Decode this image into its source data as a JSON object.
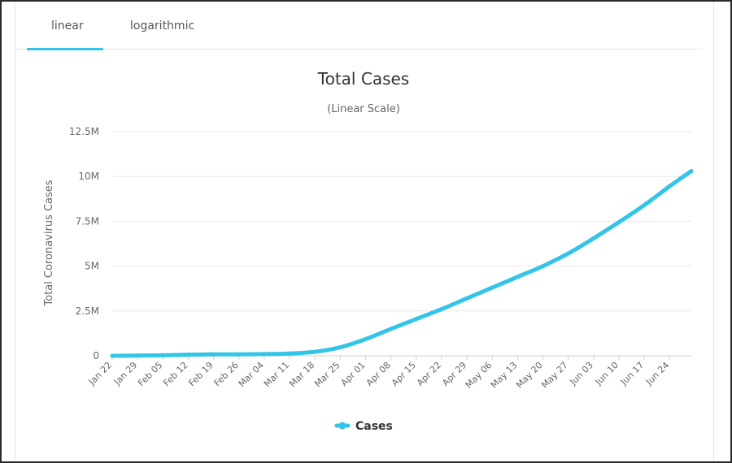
{
  "tabs": [
    {
      "label": "linear",
      "active": true
    },
    {
      "label": "logarithmic",
      "active": false
    }
  ],
  "chart_data": {
    "type": "line",
    "title": "Total Cases",
    "subtitle": "(Linear Scale)",
    "xlabel": "",
    "ylabel": "Total Coronavirus Cases",
    "x_tick_labels": [
      "Jan 22",
      "Jan 29",
      "Feb 05",
      "Feb 12",
      "Feb 19",
      "Feb 26",
      "Mar 04",
      "Mar 11",
      "Mar 18",
      "Mar 25",
      "Apr 01",
      "Apr 08",
      "Apr 15",
      "Apr 22",
      "Apr 29",
      "May 06",
      "May 13",
      "May 20",
      "May 27",
      "Jun 03",
      "Jun 10",
      "Jun 17",
      "Jun 24"
    ],
    "y_tick_labels": [
      "0",
      "2.5M",
      "5M",
      "7.5M",
      "10M",
      "12.5M"
    ],
    "ylim": [
      0,
      12500000
    ],
    "xlim": [
      "Jan 22",
      "Jun 30"
    ],
    "grid": true,
    "legend_position": "bottom-center",
    "series": [
      {
        "name": "Cases",
        "color": "#33c4e8",
        "points": [
          {
            "x": "Jan 22",
            "y": 580
          },
          {
            "x": "Jan 29",
            "y": 7800
          },
          {
            "x": "Feb 05",
            "y": 28000
          },
          {
            "x": "Feb 12",
            "y": 60000
          },
          {
            "x": "Feb 19",
            "y": 76000
          },
          {
            "x": "Feb 26",
            "y": 83000
          },
          {
            "x": "Mar 04",
            "y": 95000
          },
          {
            "x": "Mar 11",
            "y": 126000
          },
          {
            "x": "Mar 18",
            "y": 220000
          },
          {
            "x": "Mar 25",
            "y": 470000
          },
          {
            "x": "Apr 01",
            "y": 930000
          },
          {
            "x": "Apr 08",
            "y": 1500000
          },
          {
            "x": "Apr 15",
            "y": 2050000
          },
          {
            "x": "Apr 22",
            "y": 2600000
          },
          {
            "x": "Apr 29",
            "y": 3200000
          },
          {
            "x": "May 06",
            "y": 3800000
          },
          {
            "x": "May 13",
            "y": 4400000
          },
          {
            "x": "May 20",
            "y": 5000000
          },
          {
            "x": "May 27",
            "y": 5700000
          },
          {
            "x": "Jun 03",
            "y": 6550000
          },
          {
            "x": "Jun 10",
            "y": 7450000
          },
          {
            "x": "Jun 17",
            "y": 8400000
          },
          {
            "x": "Jun 24",
            "y": 9450000
          },
          {
            "x": "Jun 30",
            "y": 10300000
          }
        ]
      }
    ]
  }
}
